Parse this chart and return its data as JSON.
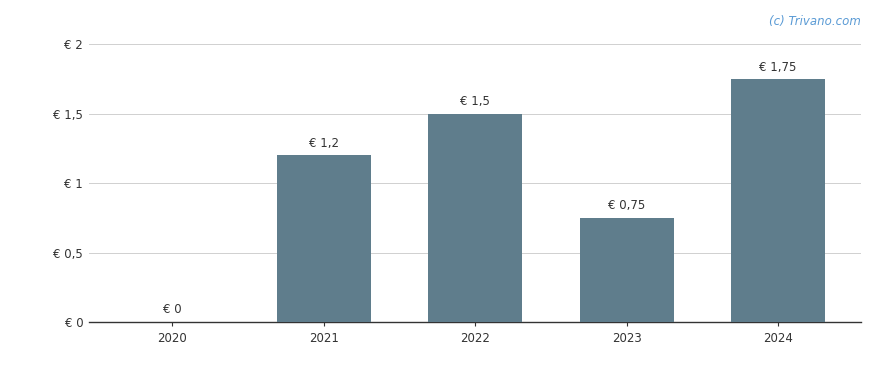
{
  "categories": [
    "2020",
    "2021",
    "2022",
    "2023",
    "2024"
  ],
  "values": [
    0,
    1.2,
    1.5,
    0.75,
    1.75
  ],
  "bar_labels": [
    "€ 0",
    "€ 1,2",
    "€ 1,5",
    "€ 0,75",
    "€ 1,75"
  ],
  "bar_color": "#5f7d8c",
  "background_color": "#ffffff",
  "ylim": [
    0,
    2.0
  ],
  "yticks": [
    0,
    0.5,
    1.0,
    1.5,
    2.0
  ],
  "ytick_labels": [
    "€ 0",
    "€ 0,5",
    "€ 1",
    "€ 1,5",
    "€ 2"
  ],
  "watermark": "(c) Trivano.com",
  "grid_color": "#d0d0d0",
  "bar_width": 0.62,
  "label_fontsize": 8.5,
  "tick_fontsize": 8.5,
  "watermark_fontsize": 8.5,
  "xlim_left": -0.55,
  "xlim_right": 4.55
}
